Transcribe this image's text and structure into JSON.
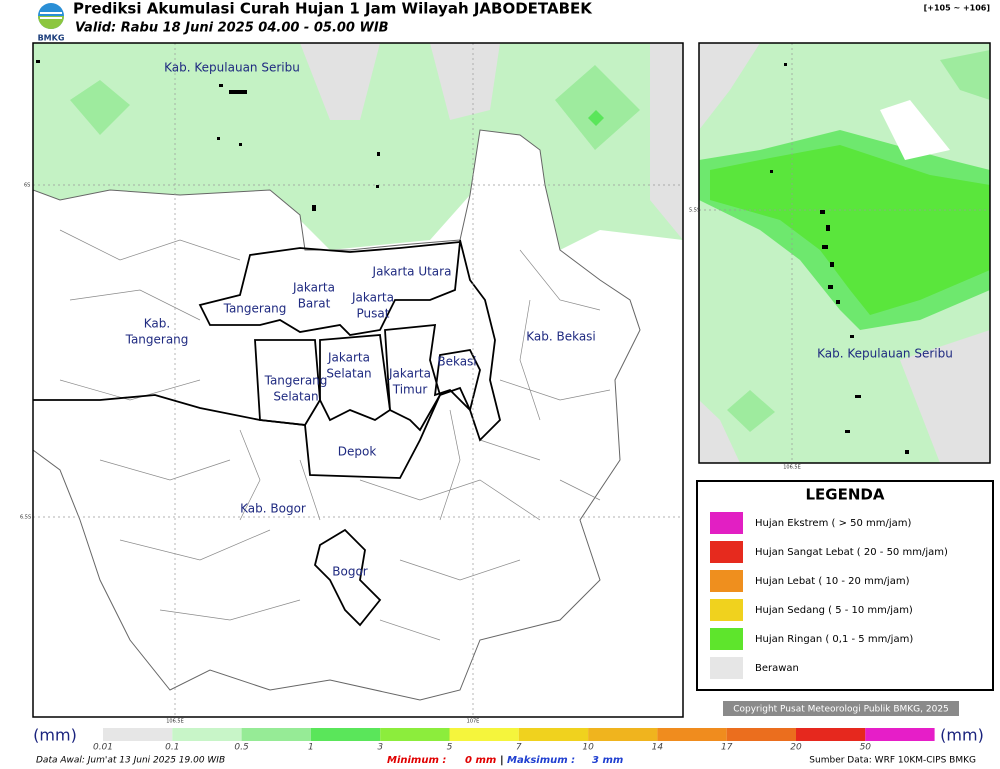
{
  "header": {
    "title": "Prediksi Akumulasi Curah Hujan 1 Jam Wilayah JABODETABEK",
    "valid": "Valid: Rabu 18 Juni 2025 04.00 - 05.00 WIB",
    "logo": "BMKG",
    "coords": "[+105 ~ +106]"
  },
  "map": {
    "labels": [
      {
        "lines": [
          "Kab. Kepulauan Seribu"
        ]
      },
      {
        "lines": [
          "Jakarta Utara"
        ]
      },
      {
        "lines": [
          "Jakarta",
          "Barat"
        ]
      },
      {
        "lines": [
          "Jakarta",
          "Pusat"
        ]
      },
      {
        "lines": [
          "Tangerang"
        ]
      },
      {
        "lines": [
          "Kab.",
          "Tangerang"
        ]
      },
      {
        "lines": [
          "Jakarta",
          "Selatan"
        ]
      },
      {
        "lines": [
          "Jakarta",
          "Timur"
        ]
      },
      {
        "lines": [
          "Bekasi"
        ]
      },
      {
        "lines": [
          "Kab. Bekasi"
        ]
      },
      {
        "lines": [
          "Tangerang",
          "Selatan"
        ]
      },
      {
        "lines": [
          "Depok"
        ]
      },
      {
        "lines": [
          "Kab. Bogor"
        ]
      },
      {
        "lines": [
          "Bogor"
        ]
      }
    ],
    "grid_labels": [
      "6S",
      "6.5S",
      "106.5E",
      "107E"
    ]
  },
  "inset": {
    "label": "Kab. Kepulauan Seribu",
    "grid_labels": [
      "5.5S",
      "106.5E"
    ]
  },
  "legend": {
    "title": "LEGENDA",
    "items": [
      {
        "label": "Hujan Ekstrem ( > 50 mm/jam)",
        "color": "#e21fc3"
      },
      {
        "label": "Hujan Sangat Lebat ( 20 - 50 mm/jam)",
        "color": "#e62a1e"
      },
      {
        "label": "Hujan Lebat ( 10 - 20 mm/jam)",
        "color": "#ef8f1e"
      },
      {
        "label": "Hujan Sedang ( 5 - 10 mm/jam)",
        "color": "#f0d21e"
      },
      {
        "label": "Hujan Ringan ( 0,1 - 5 mm/jam)",
        "color": "#5ee52c"
      },
      {
        "label": "Berawan",
        "color": "#e6e6e6"
      }
    ]
  },
  "copyright": "Copyright Pusat Meteorologi Publik BMKG, 2025",
  "colorbar": {
    "unit": "(mm)",
    "labels": [
      "0.01",
      "0.1",
      "0.5",
      "1",
      "3",
      "5",
      "7",
      "10",
      "14",
      "17",
      "20",
      "50"
    ],
    "colors": [
      "#e6e6e6",
      "#c8f5c8",
      "#96eb96",
      "#5ae65a",
      "#8ced3c",
      "#f5f53c",
      "#f0d21e",
      "#f0b41e",
      "#f08c1e",
      "#eb6e1e",
      "#e6281e",
      "#e61ec8"
    ]
  },
  "footer": {
    "initial": "Data Awal: Jum'at 13 Juni 2025 19.00 WIB",
    "minimum_label": "Minimum :",
    "minimum": "0 mm",
    "separator": "|",
    "maximum_label": "Maksimum :",
    "maximum": "3 mm",
    "source": "Sumber Data: WRF 10KM-CIPS BMKG"
  }
}
